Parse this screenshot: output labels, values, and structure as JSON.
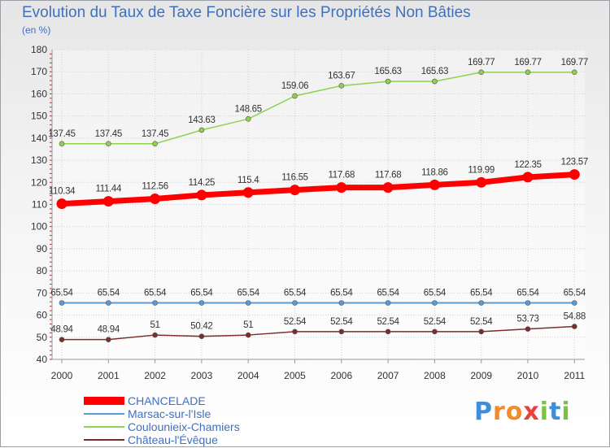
{
  "chart_data": {
    "type": "line",
    "title": "Evolution du Taux de Taxe Foncière sur les Propriétés Non Bâties",
    "ylabel": "(en %)",
    "xlabel": "",
    "ylim": [
      40,
      180
    ],
    "yticks": [
      40,
      50,
      60,
      70,
      80,
      90,
      100,
      110,
      120,
      130,
      140,
      150,
      160,
      170,
      180
    ],
    "categories": [
      "2000",
      "2001",
      "2002",
      "2003",
      "2004",
      "2005",
      "2006",
      "2007",
      "2008",
      "2009",
      "2010",
      "2011"
    ],
    "grid": true,
    "legend_position": "bottom-left",
    "series": [
      {
        "name": "CHANCELADE",
        "color": "#ff0000",
        "values": [
          110.34,
          111.44,
          112.56,
          114.25,
          115.4,
          116.55,
          117.68,
          117.68,
          118.86,
          119.99,
          122.35,
          123.57
        ],
        "labels": [
          "110.34",
          "111.44",
          "112.56",
          "114.25",
          "115.4",
          "116.55",
          "117.68",
          "117.68",
          "118.86",
          "119.99",
          "122.35",
          "123.57"
        ]
      },
      {
        "name": "Marsac-sur-l'Isle",
        "color": "#5b9bd5",
        "values": [
          65.54,
          65.54,
          65.54,
          65.54,
          65.54,
          65.54,
          65.54,
          65.54,
          65.54,
          65.54,
          65.54,
          65.54
        ],
        "labels": [
          "65.54",
          "65.54",
          "65.54",
          "65.54",
          "65.54",
          "65.54",
          "65.54",
          "65.54",
          "65.54",
          "65.54",
          "65.54",
          "65.54"
        ]
      },
      {
        "name": "Coulounieix-Chamiers",
        "color": "#8fd14f",
        "values": [
          137.45,
          137.45,
          137.45,
          143.63,
          148.65,
          159.06,
          163.67,
          165.63,
          165.63,
          169.77,
          169.77,
          169.77
        ],
        "labels": [
          "137.45",
          "137.45",
          "137.45",
          "143.63",
          "148.65",
          "159.06",
          "163.67",
          "165.63",
          "165.63",
          "169.77",
          "169.77",
          "169.77"
        ]
      },
      {
        "name": "Château-l'Évêque",
        "color": "#7b2d2d",
        "values": [
          48.94,
          48.94,
          51,
          50.42,
          51,
          52.54,
          52.54,
          52.54,
          52.54,
          52.54,
          53.73,
          54.88
        ],
        "labels": [
          "48.94",
          "48.94",
          "51",
          "50.42",
          "51",
          "52.54",
          "52.54",
          "52.54",
          "52.54",
          "52.54",
          "53.73",
          "54.88"
        ]
      }
    ]
  },
  "logo": {
    "letters": [
      "P",
      "r",
      "o",
      "x",
      "i",
      "t",
      "i"
    ],
    "colors": [
      "#3f8fd8",
      "#f28c28",
      "#f28c28",
      "#e8413c",
      "#7cc242",
      "#3f8fd8",
      "#7cc242"
    ]
  }
}
